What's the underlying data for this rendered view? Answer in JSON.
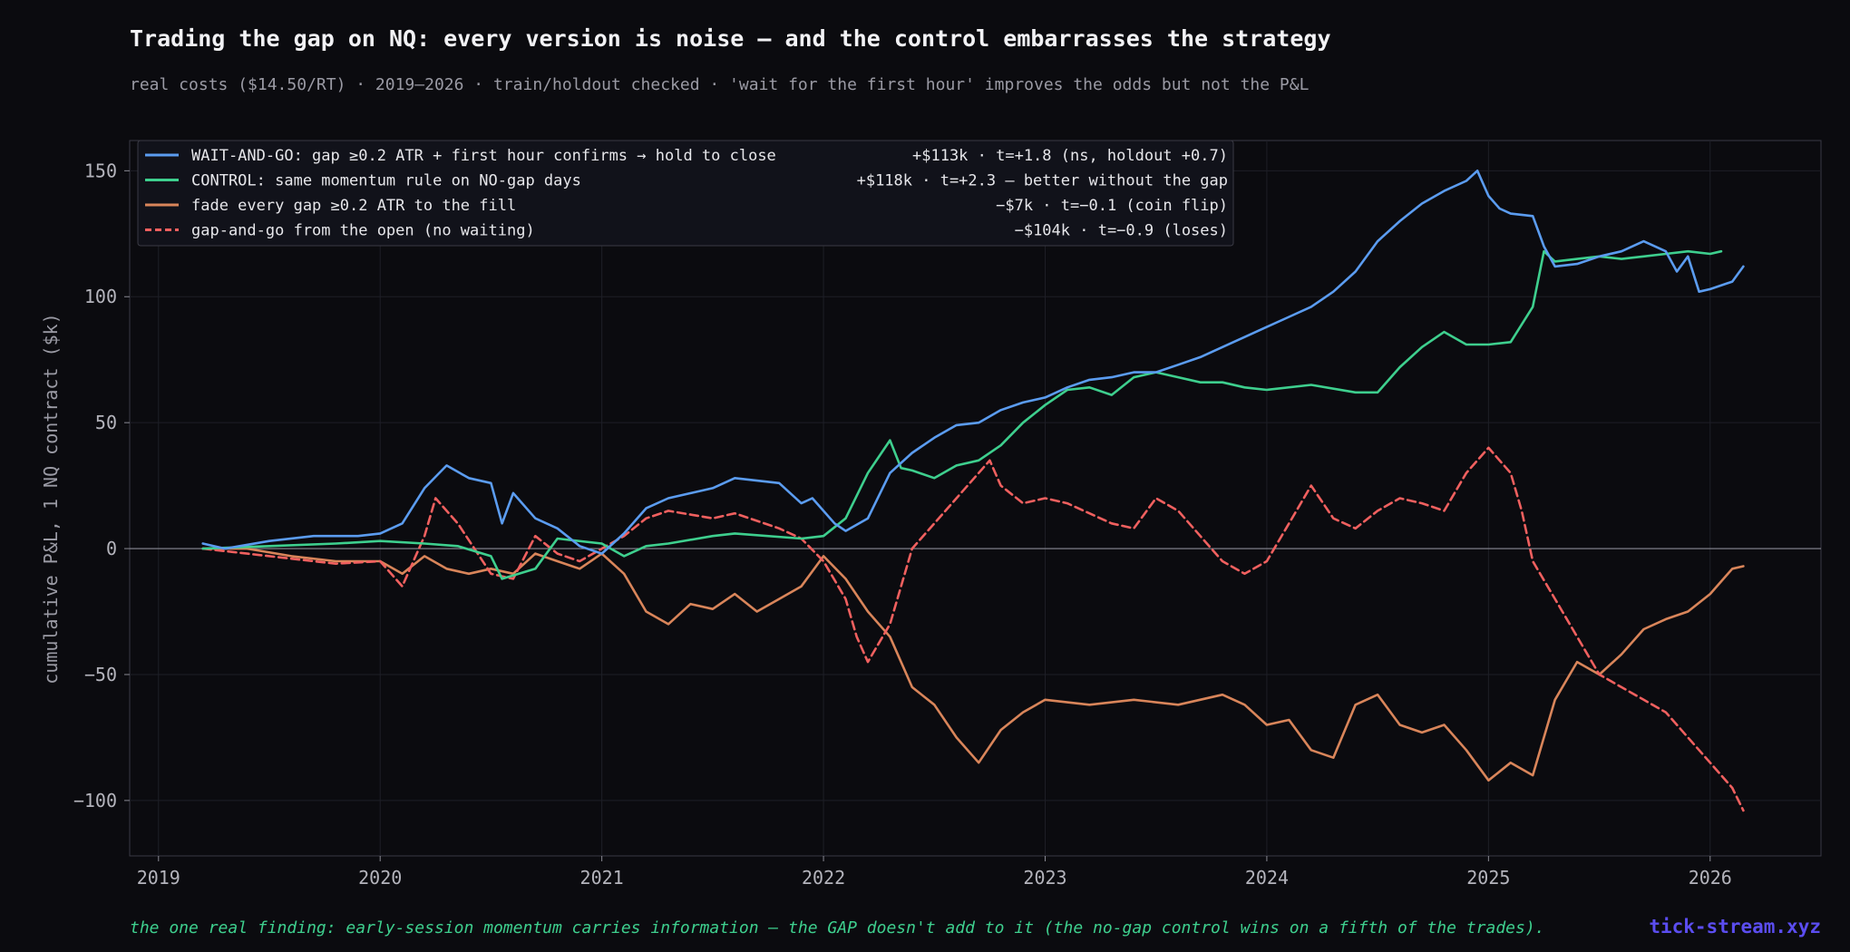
{
  "header": {
    "title": "Trading the gap on NQ: every version is noise — and the control embarrasses the strategy",
    "subtitle": "real costs ($14.50/RT) · 2019–2026 · train/holdout checked · 'wait for the first hour' improves the odds but not the P&L"
  },
  "footer": {
    "note": "the one real finding: early-session momentum carries information — the GAP doesn't add to it (the no-gap control wins on a fifth of the trades).",
    "brand": "tick-stream.xyz"
  },
  "colors": {
    "background": "#0b0b0f",
    "wait_and_go": "#5b9cf0",
    "control": "#3ecf8e",
    "fade": "#d9855a",
    "gap_and_go": "#f0605f",
    "footer_note": "#3ecf8e",
    "brand": "#5b4df0"
  },
  "chart_data": {
    "type": "line",
    "title": "Trading the gap on NQ: every version is noise — and the control embarrasses the strategy",
    "xlabel": "",
    "ylabel": "cumulative P&L, 1 NQ contract ($k)",
    "xlim": [
      2018.87,
      2026.5
    ],
    "ylim": [
      -122,
      162
    ],
    "x_ticks": [
      2019,
      2020,
      2021,
      2022,
      2023,
      2024,
      2025,
      2026
    ],
    "x_tick_labels": [
      "2019",
      "2020",
      "2021",
      "2022",
      "2023",
      "2024",
      "2025",
      "2026"
    ],
    "y_ticks": [
      -100,
      -50,
      0,
      50,
      100,
      150
    ],
    "y_tick_labels": [
      "−100",
      "−50",
      "0",
      "50",
      "100",
      "150"
    ],
    "grid": true,
    "zero_line": true,
    "legend_position": "top-left",
    "series": [
      {
        "name": "WAIT-AND-GO: gap ≥0.2 ATR + first hour confirms → hold to close",
        "stat": "+$113k · t=+1.8 (ns, holdout +0.7)",
        "style": "solid",
        "x": [
          2019.2,
          2019.3,
          2019.5,
          2019.7,
          2019.9,
          2020.0,
          2020.1,
          2020.2,
          2020.3,
          2020.4,
          2020.5,
          2020.55,
          2020.6,
          2020.7,
          2020.8,
          2020.9,
          2021.0,
          2021.1,
          2021.2,
          2021.3,
          2021.5,
          2021.6,
          2021.8,
          2021.9,
          2021.95,
          2022.05,
          2022.1,
          2022.2,
          2022.3,
          2022.4,
          2022.5,
          2022.6,
          2022.7,
          2022.8,
          2022.9,
          2023.0,
          2023.1,
          2023.2,
          2023.3,
          2023.4,
          2023.5,
          2023.6,
          2023.7,
          2023.8,
          2023.9,
          2024.0,
          2024.1,
          2024.2,
          2024.3,
          2024.4,
          2024.5,
          2024.6,
          2024.7,
          2024.8,
          2024.9,
          2024.95,
          2025.0,
          2025.05,
          2025.1,
          2025.2,
          2025.25,
          2025.3,
          2025.4,
          2025.5,
          2025.6,
          2025.7,
          2025.8,
          2025.85,
          2025.9,
          2025.95,
          2026.0,
          2026.1,
          2026.15
        ],
        "y": [
          2,
          0,
          3,
          5,
          5,
          6,
          10,
          24,
          33,
          28,
          26,
          10,
          22,
          12,
          8,
          1,
          -2,
          6,
          16,
          20,
          24,
          28,
          26,
          18,
          20,
          10,
          7,
          12,
          30,
          38,
          44,
          49,
          50,
          55,
          58,
          60,
          64,
          67,
          68,
          70,
          70,
          73,
          76,
          80,
          84,
          88,
          92,
          96,
          102,
          110,
          122,
          130,
          137,
          142,
          146,
          150,
          140,
          135,
          133,
          132,
          120,
          112,
          113,
          116,
          118,
          122,
          118,
          110,
          116,
          102,
          103,
          106,
          112
        ]
      },
      {
        "name": "CONTROL: same momentum rule on NO-gap days",
        "stat": "+$118k · t=+2.3 — better without the gap",
        "style": "solid",
        "x": [
          2019.2,
          2019.5,
          2019.8,
          2020.0,
          2020.2,
          2020.35,
          2020.5,
          2020.55,
          2020.7,
          2020.8,
          2021.0,
          2021.1,
          2021.2,
          2021.3,
          2021.5,
          2021.6,
          2021.9,
          2022.0,
          2022.1,
          2022.2,
          2022.3,
          2022.35,
          2022.4,
          2022.5,
          2022.6,
          2022.7,
          2022.8,
          2022.9,
          2023.0,
          2023.1,
          2023.2,
          2023.3,
          2023.4,
          2023.5,
          2023.6,
          2023.7,
          2023.8,
          2023.9,
          2024.0,
          2024.2,
          2024.4,
          2024.5,
          2024.6,
          2024.7,
          2024.8,
          2024.9,
          2025.0,
          2025.1,
          2025.2,
          2025.25,
          2025.3,
          2025.4,
          2025.5,
          2025.6,
          2025.7,
          2025.8,
          2025.9,
          2026.0,
          2026.05
        ],
        "y": [
          0,
          1,
          2,
          3,
          2,
          1,
          -3,
          -12,
          -8,
          4,
          2,
          -3,
          1,
          2,
          5,
          6,
          4,
          5,
          12,
          30,
          43,
          32,
          31,
          28,
          33,
          35,
          41,
          50,
          57,
          63,
          64,
          61,
          68,
          70,
          68,
          66,
          66,
          64,
          63,
          65,
          62,
          62,
          72,
          80,
          86,
          81,
          81,
          82,
          96,
          118,
          114,
          115,
          116,
          115,
          116,
          117,
          118,
          117,
          118
        ]
      },
      {
        "name": "fade every gap ≥0.2 ATR to the fill",
        "stat": "−$7k · t=−0.1 (coin flip)",
        "style": "solid",
        "x": [
          2019.2,
          2019.4,
          2019.6,
          2019.8,
          2020.0,
          2020.1,
          2020.2,
          2020.3,
          2020.4,
          2020.5,
          2020.6,
          2020.7,
          2020.8,
          2020.9,
          2021.0,
          2021.1,
          2021.2,
          2021.3,
          2021.4,
          2021.5,
          2021.6,
          2021.7,
          2021.8,
          2021.9,
          2022.0,
          2022.1,
          2022.2,
          2022.3,
          2022.4,
          2022.5,
          2022.6,
          2022.7,
          2022.8,
          2022.9,
          2023.0,
          2023.2,
          2023.4,
          2023.6,
          2023.8,
          2023.9,
          2024.0,
          2024.1,
          2024.2,
          2024.3,
          2024.4,
          2024.5,
          2024.6,
          2024.7,
          2024.8,
          2024.9,
          2025.0,
          2025.1,
          2025.2,
          2025.3,
          2025.4,
          2025.5,
          2025.6,
          2025.7,
          2025.8,
          2025.9,
          2026.0,
          2026.1,
          2026.15
        ],
        "y": [
          0,
          0,
          -3,
          -5,
          -5,
          -10,
          -3,
          -8,
          -10,
          -8,
          -10,
          -2,
          -5,
          -8,
          -2,
          -10,
          -25,
          -30,
          -22,
          -24,
          -18,
          -25,
          -20,
          -15,
          -3,
          -12,
          -25,
          -35,
          -55,
          -62,
          -75,
          -85,
          -72,
          -65,
          -60,
          -62,
          -60,
          -62,
          -58,
          -62,
          -70,
          -68,
          -80,
          -83,
          -62,
          -58,
          -70,
          -73,
          -70,
          -80,
          -92,
          -85,
          -90,
          -60,
          -45,
          -50,
          -42,
          -32,
          -28,
          -25,
          -18,
          -8,
          -7
        ]
      },
      {
        "name": "gap-and-go from the open (no waiting)",
        "stat": "−$104k · t=−0.9 (loses)",
        "style": "dashed",
        "x": [
          2019.2,
          2019.4,
          2019.6,
          2019.8,
          2020.0,
          2020.1,
          2020.2,
          2020.25,
          2020.35,
          2020.5,
          2020.6,
          2020.7,
          2020.8,
          2020.9,
          2021.0,
          2021.1,
          2021.2,
          2021.3,
          2021.5,
          2021.6,
          2021.8,
          2021.9,
          2022.0,
          2022.1,
          2022.15,
          2022.2,
          2022.3,
          2022.4,
          2022.5,
          2022.6,
          2022.7,
          2022.75,
          2022.8,
          2022.9,
          2023.0,
          2023.1,
          2023.2,
          2023.3,
          2023.4,
          2023.5,
          2023.6,
          2023.7,
          2023.8,
          2023.9,
          2024.0,
          2024.1,
          2024.2,
          2024.3,
          2024.4,
          2024.5,
          2024.6,
          2024.7,
          2024.8,
          2024.9,
          2025.0,
          2025.1,
          2025.15,
          2025.2,
          2025.3,
          2025.4,
          2025.5,
          2025.6,
          2025.7,
          2025.8,
          2025.9,
          2026.0,
          2026.1,
          2026.15
        ],
        "y": [
          0,
          -2,
          -4,
          -6,
          -5,
          -15,
          5,
          20,
          10,
          -10,
          -12,
          5,
          -2,
          -5,
          0,
          5,
          12,
          15,
          12,
          14,
          8,
          4,
          -5,
          -20,
          -35,
          -45,
          -30,
          0,
          10,
          20,
          30,
          35,
          25,
          18,
          20,
          18,
          14,
          10,
          8,
          20,
          15,
          5,
          -5,
          -10,
          -5,
          10,
          25,
          12,
          8,
          15,
          20,
          18,
          15,
          30,
          40,
          30,
          15,
          -5,
          -20,
          -35,
          -50,
          -55,
          -60,
          -65,
          -75,
          -85,
          -95,
          -104
        ]
      }
    ]
  }
}
